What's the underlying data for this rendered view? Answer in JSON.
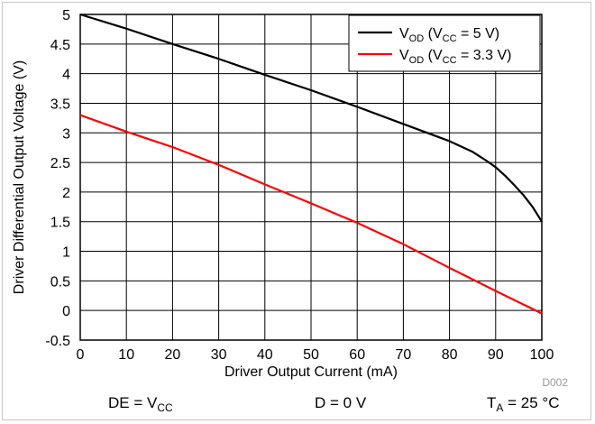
{
  "chart_data": {
    "type": "line",
    "xlabel": "Driver Output Current (mA)",
    "ylabel": "Driver Differential Output Voltage (V)",
    "xlim": [
      0,
      100
    ],
    "ylim": [
      -0.5,
      5
    ],
    "xticks": [
      "0",
      "10",
      "20",
      "30",
      "40",
      "50",
      "60",
      "70",
      "80",
      "90",
      "100"
    ],
    "yticks": [
      "5",
      "4.5",
      "4",
      "3.5",
      "3",
      "2.5",
      "2",
      "1.5",
      "1",
      "0.5",
      "0",
      "-0.5"
    ],
    "grid": true,
    "legend_position": "top-right",
    "series": [
      {
        "name": "V_OD (V_CC = 5 V)",
        "name_parts": [
          "V",
          "OD",
          " (V",
          "CC",
          " = 5 V)"
        ],
        "color": "#000000",
        "x": [
          0,
          10,
          20,
          30,
          40,
          50,
          60,
          70,
          80,
          85,
          88,
          90,
          92,
          94,
          96,
          98,
          100
        ],
        "y": [
          5.0,
          4.76,
          4.5,
          4.25,
          3.98,
          3.72,
          3.44,
          3.15,
          2.86,
          2.68,
          2.53,
          2.42,
          2.28,
          2.12,
          1.95,
          1.75,
          1.5
        ]
      },
      {
        "name": "V_OD (V_CC = 3.3 V)",
        "name_parts": [
          "V",
          "OD",
          " (V",
          "CC",
          " = 3.3 V)"
        ],
        "color": "#ff0000",
        "x": [
          0,
          10,
          20,
          30,
          40,
          50,
          60,
          70,
          80,
          90,
          100
        ],
        "y": [
          3.3,
          3.02,
          2.76,
          2.46,
          2.13,
          1.81,
          1.48,
          1.12,
          0.72,
          0.33,
          -0.05
        ]
      }
    ],
    "annotations": [
      "D002"
    ]
  },
  "footer": {
    "left": {
      "main": "DE = V",
      "sub": "CC"
    },
    "center": "D = 0 V",
    "right": {
      "main": "T",
      "sub": "A",
      "tail": " = 25 °C"
    }
  }
}
